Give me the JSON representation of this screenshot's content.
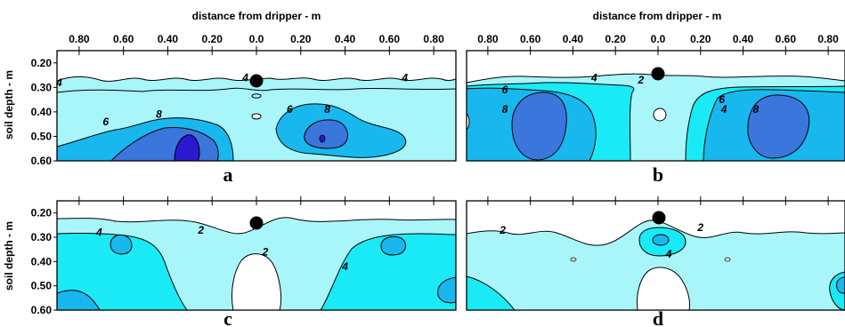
{
  "chart_data": {
    "type": "contour",
    "x_title": "distance from dripper - m",
    "y_title": "soil depth - m",
    "x_tick_labels": [
      "0.80",
      "0.60",
      "0.40",
      "0.20",
      "0.0",
      "0.20",
      "0.40",
      "0.60",
      "0.80"
    ],
    "x_ticks": [
      -0.8,
      -0.6,
      -0.4,
      -0.2,
      0.0,
      0.2,
      0.4,
      0.6,
      0.8
    ],
    "y_tick_labels": [
      "0.20",
      "0.30",
      "0.40",
      "0.50",
      "0.60"
    ],
    "y_ticks": [
      0.2,
      0.3,
      0.4,
      0.5,
      0.6
    ],
    "xlim": [
      -0.9,
      0.9
    ],
    "ylim": [
      0.15,
      0.6
    ],
    "levels": [
      2,
      4,
      6,
      8
    ],
    "colors": {
      "below_2": "#ffffff",
      "level_2": "#a8f6fa",
      "level_4": "#19eaf5",
      "level_6": "#18b8ee",
      "level_8": "#3a76db",
      "level_10": "#2c18d0",
      "dripper": "#000000"
    },
    "panels": [
      {
        "id": "a",
        "label": "a",
        "contour_labels": [
          {
            "text": "4",
            "x": -0.89,
            "y": 0.28
          },
          {
            "text": "4",
            "x": -0.05,
            "y": 0.26
          },
          {
            "text": "4",
            "x": 0.67,
            "y": 0.26
          },
          {
            "text": "6",
            "x": -0.68,
            "y": 0.44
          },
          {
            "text": "8",
            "x": -0.44,
            "y": 0.41
          },
          {
            "text": "6",
            "x": 0.15,
            "y": 0.39
          },
          {
            "text": "8",
            "x": 0.32,
            "y": 0.39
          }
        ]
      },
      {
        "id": "b",
        "label": "b",
        "contour_labels": [
          {
            "text": "6",
            "x": -0.72,
            "y": 0.31
          },
          {
            "text": "8",
            "x": -0.72,
            "y": 0.39
          },
          {
            "text": "4",
            "x": -0.3,
            "y": 0.26
          },
          {
            "text": "2",
            "x": -0.08,
            "y": 0.27
          },
          {
            "text": "4",
            "x": 0.31,
            "y": 0.39
          },
          {
            "text": "6",
            "x": 0.3,
            "y": 0.35
          },
          {
            "text": "8",
            "x": 0.46,
            "y": 0.39
          }
        ]
      },
      {
        "id": "c",
        "label": "c",
        "contour_labels": [
          {
            "text": "4",
            "x": -0.71,
            "y": 0.28
          },
          {
            "text": "2",
            "x": -0.25,
            "y": 0.27
          },
          {
            "text": "2",
            "x": 0.04,
            "y": 0.36
          },
          {
            "text": "4",
            "x": 0.4,
            "y": 0.42
          }
        ]
      },
      {
        "id": "d",
        "label": "d",
        "contour_labels": [
          {
            "text": "2",
            "x": -0.73,
            "y": 0.27
          },
          {
            "text": "4",
            "x": 0.05,
            "y": 0.37
          },
          {
            "text": "2",
            "x": 0.2,
            "y": 0.26
          }
        ]
      }
    ]
  }
}
